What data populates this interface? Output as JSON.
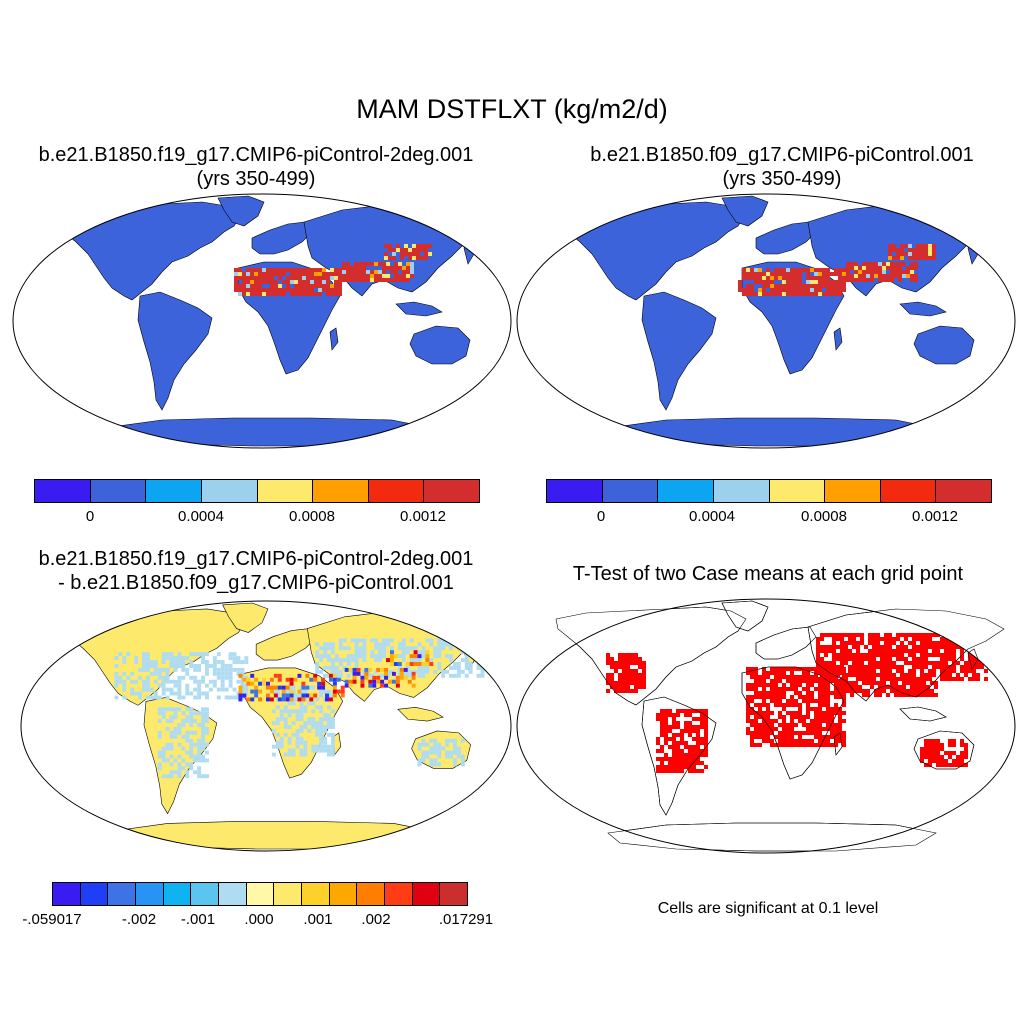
{
  "figure": {
    "title": "MAM DSTFLXT (kg/m2/d)",
    "panels": [
      {
        "title_line1": "b.e21.B1850.f19_g17.CMIP6-piControl-2deg.001",
        "title_line2": "(yrs 350-499)",
        "ticks": [
          "0",
          "0.0004",
          "0.0008",
          "0.0012"
        ],
        "colors": [
          "#3a1cf2",
          "#3d63db",
          "#0da5f2",
          "#9cd1ee",
          "#fde96b",
          "#ffa000",
          "#f22a0f",
          "#d42d2d"
        ]
      },
      {
        "title_line1": "b.e21.B1850.f09_g17.CMIP6-piControl.001",
        "title_line2": "(yrs 350-499)",
        "ticks": [
          "0",
          "0.0004",
          "0.0008",
          "0.0012"
        ],
        "colors": [
          "#3a1cf2",
          "#3d63db",
          "#0da5f2",
          "#9cd1ee",
          "#fde96b",
          "#ffa000",
          "#f22a0f",
          "#d42d2d"
        ]
      },
      {
        "title_line1": "b.e21.B1850.f19_g17.CMIP6-piControl-2deg.001",
        "title_line2": "- b.e21.B1850.f09_g17.CMIP6-piControl.001",
        "ticks": [
          "-.059017",
          "-.002",
          "-.001",
          ".000",
          ".001",
          ".002",
          ".017291"
        ],
        "colors": [
          "#3a1cf2",
          "#1e3ff5",
          "#3d73e6",
          "#2693f5",
          "#0fb3f2",
          "#5bc4ef",
          "#b0dcf2",
          "#fff8a6",
          "#fde96b",
          "#fdd02a",
          "#fca800",
          "#ff7d00",
          "#ff3c14",
          "#e0000f",
          "#cc2d2d"
        ]
      },
      {
        "title_line1": "T-Test of two Case means at each grid point",
        "note": "Cells are significant at 0.1 level",
        "colors": [
          "#ff0000"
        ]
      }
    ]
  }
}
